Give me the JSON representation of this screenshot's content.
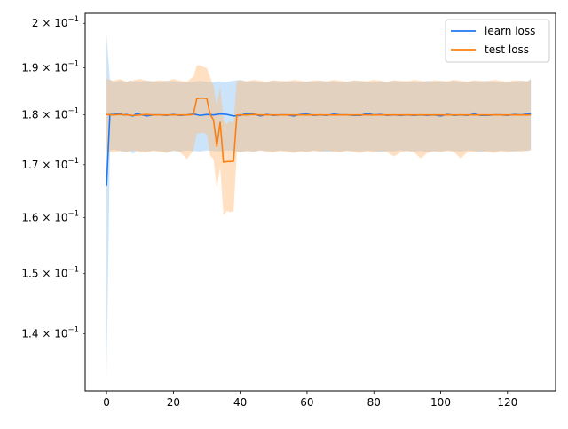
{
  "chart_data": {
    "type": "line",
    "title": "",
    "xlabel": "",
    "ylabel": "",
    "yscale": "log",
    "xlim": [
      -6.4,
      134.4
    ],
    "ylim": [
      0.1311,
      0.2023
    ],
    "x_ticks": [
      0,
      20,
      40,
      60,
      80,
      100,
      120
    ],
    "x_tick_labels": [
      "0",
      "20",
      "40",
      "60",
      "80",
      "100",
      "120"
    ],
    "y_ticks": [
      0.14,
      0.15,
      0.16,
      0.17,
      0.18,
      0.19,
      0.2
    ],
    "y_tick_labels": [
      {
        "base": "1.4 × 10",
        "exp": "−1"
      },
      {
        "base": "1.5 × 10",
        "exp": "−1"
      },
      {
        "base": "1.6 × 10",
        "exp": "−1"
      },
      {
        "base": "1.7 × 10",
        "exp": "−1"
      },
      {
        "base": "1.8 × 10",
        "exp": "−1"
      },
      {
        "base": "1.9 × 10",
        "exp": "−1"
      },
      {
        "base": "2 × 10",
        "exp": "−1"
      }
    ],
    "grid": false,
    "legend_position": "top-right",
    "series": [
      {
        "name": "learn loss",
        "color": "#1f77f4",
        "band_color": "#8cc4f4",
        "band_opacity": 0.45,
        "x": [
          0,
          1,
          2,
          3,
          4,
          5,
          6,
          7,
          8,
          9,
          10,
          12,
          14,
          16,
          18,
          20,
          22,
          24,
          26,
          28,
          30,
          32,
          34,
          36,
          38,
          40,
          42,
          44,
          46,
          48,
          50,
          52,
          54,
          56,
          58,
          60,
          62,
          64,
          66,
          68,
          70,
          72,
          74,
          76,
          78,
          80,
          82,
          84,
          86,
          88,
          90,
          92,
          94,
          96,
          98,
          100,
          102,
          104,
          106,
          108,
          110,
          112,
          114,
          116,
          118,
          120,
          122,
          124,
          126,
          127
        ],
        "values": [
          0.1659,
          0.1801,
          0.1801,
          0.1802,
          0.1803,
          0.18,
          0.1801,
          0.1799,
          0.1798,
          0.1803,
          0.1801,
          0.1798,
          0.18,
          0.18,
          0.1799,
          0.1801,
          0.1799,
          0.18,
          0.1802,
          0.1799,
          0.1801,
          0.18,
          0.1802,
          0.1801,
          0.1798,
          0.1799,
          0.1803,
          0.1802,
          0.1798,
          0.1801,
          0.1799,
          0.18,
          0.18,
          0.1798,
          0.1801,
          0.1802,
          0.1799,
          0.18,
          0.1799,
          0.1802,
          0.18,
          0.18,
          0.1799,
          0.1799,
          0.1803,
          0.18,
          0.1801,
          0.1799,
          0.18,
          0.1799,
          0.18,
          0.1799,
          0.18,
          0.1799,
          0.18,
          0.1798,
          0.1801,
          0.1799,
          0.18,
          0.1799,
          0.1802,
          0.1799,
          0.1799,
          0.18,
          0.18,
          0.1799,
          0.1801,
          0.18,
          0.1802,
          0.1803
        ],
        "upper": [
          0.1975,
          0.1875,
          0.187,
          0.187,
          0.1872,
          0.1871,
          0.1869,
          0.1873,
          0.187,
          0.1871,
          0.187,
          0.1872,
          0.1871,
          0.187,
          0.1872,
          0.1871,
          0.187,
          0.1868,
          0.187,
          0.1872,
          0.187,
          0.1869,
          0.1871,
          0.187,
          0.1872,
          0.1874,
          0.187,
          0.1871,
          0.1869,
          0.187,
          0.1872,
          0.187,
          0.1871,
          0.187,
          0.1869,
          0.1871,
          0.187,
          0.1872,
          0.187,
          0.1871,
          0.1869,
          0.187,
          0.1872,
          0.1871,
          0.187,
          0.1869,
          0.1871,
          0.187,
          0.1872,
          0.187,
          0.1871,
          0.187,
          0.1869,
          0.1872,
          0.187,
          0.1871,
          0.187,
          0.1872,
          0.1869,
          0.187,
          0.1871,
          0.187,
          0.1872,
          0.187,
          0.1869,
          0.1871,
          0.187,
          0.1872,
          0.1871,
          0.1876
        ],
        "lower": [
          0.133,
          0.1727,
          0.173,
          0.1728,
          0.1727,
          0.1726,
          0.1725,
          0.1727,
          0.1722,
          0.1728,
          0.1727,
          0.1726,
          0.1728,
          0.1727,
          0.1725,
          0.1727,
          0.1726,
          0.1728,
          0.1727,
          0.1726,
          0.1728,
          0.1727,
          0.1726,
          0.1728,
          0.1727,
          0.1725,
          0.1727,
          0.1726,
          0.1728,
          0.1727,
          0.1726,
          0.1728,
          0.1727,
          0.1725,
          0.1727,
          0.1726,
          0.1728,
          0.1727,
          0.1725,
          0.1727,
          0.1726,
          0.1728,
          0.1727,
          0.1726,
          0.1728,
          0.1727,
          0.1725,
          0.1727,
          0.1726,
          0.1728,
          0.1727,
          0.1726,
          0.1727,
          0.1725,
          0.1727,
          0.1726,
          0.1728,
          0.1727,
          0.1726,
          0.1728,
          0.1727,
          0.1725,
          0.1727,
          0.1726,
          0.1728,
          0.1727,
          0.1726,
          0.1728,
          0.1727,
          0.1729
        ]
      },
      {
        "name": "test loss",
        "color": "#ff7f0e",
        "band_color": "#ffbb78",
        "band_opacity": 0.45,
        "x": [
          0,
          2,
          4,
          6,
          8,
          10,
          12,
          14,
          16,
          18,
          20,
          22,
          24,
          26,
          27,
          28,
          29,
          30,
          31,
          32,
          33,
          34,
          35,
          36,
          37,
          38,
          39,
          40,
          42,
          44,
          46,
          48,
          50,
          52,
          54,
          56,
          58,
          60,
          62,
          64,
          66,
          68,
          70,
          72,
          74,
          76,
          78,
          80,
          82,
          84,
          86,
          88,
          90,
          92,
          94,
          96,
          98,
          100,
          102,
          104,
          106,
          108,
          110,
          112,
          114,
          116,
          118,
          120,
          122,
          124,
          126,
          127
        ],
        "values": [
          0.1801,
          0.18,
          0.1801,
          0.18,
          0.1799,
          0.18,
          0.1801,
          0.18,
          0.18,
          0.18,
          0.18,
          0.18,
          0.18,
          0.1801,
          0.1834,
          0.1835,
          0.1835,
          0.1834,
          0.1801,
          0.179,
          0.1736,
          0.1785,
          0.1705,
          0.1706,
          0.1706,
          0.1707,
          0.18,
          0.18,
          0.18,
          0.1801,
          0.18,
          0.18,
          0.18,
          0.18,
          0.18,
          0.18,
          0.18,
          0.18,
          0.18,
          0.18,
          0.18,
          0.18,
          0.18,
          0.18,
          0.18,
          0.18,
          0.18,
          0.18,
          0.18,
          0.18,
          0.18,
          0.18,
          0.18,
          0.18,
          0.18,
          0.18,
          0.18,
          0.18,
          0.18,
          0.18,
          0.18,
          0.18,
          0.18,
          0.18,
          0.18,
          0.18,
          0.18,
          0.18,
          0.18,
          0.18,
          0.18,
          0.18
        ],
        "upper": [
          0.1876,
          0.1872,
          0.1876,
          0.187,
          0.1873,
          0.1876,
          0.1872,
          0.1871,
          0.1873,
          0.1871,
          0.1876,
          0.1872,
          0.187,
          0.1881,
          0.1905,
          0.1906,
          0.1902,
          0.19,
          0.188,
          0.1862,
          0.182,
          0.186,
          0.179,
          0.1781,
          0.1788,
          0.1785,
          0.1872,
          0.1873,
          0.1871,
          0.1874,
          0.1872,
          0.187,
          0.1873,
          0.1872,
          0.1871,
          0.1874,
          0.1872,
          0.187,
          0.1873,
          0.1872,
          0.1871,
          0.1874,
          0.1872,
          0.187,
          0.1873,
          0.1872,
          0.1871,
          0.1874,
          0.1872,
          0.187,
          0.1873,
          0.1872,
          0.1871,
          0.1874,
          0.1872,
          0.187,
          0.1873,
          0.1872,
          0.1871,
          0.1874,
          0.1872,
          0.187,
          0.1873,
          0.1872,
          0.1871,
          0.1874,
          0.1872,
          0.187,
          0.1873,
          0.1872,
          0.1871,
          0.1875
        ],
        "lower": [
          0.1726,
          0.1724,
          0.1727,
          0.1725,
          0.1728,
          0.1725,
          0.1724,
          0.1727,
          0.1725,
          0.1723,
          0.1728,
          0.1725,
          0.1711,
          0.1728,
          0.1762,
          0.1762,
          0.1764,
          0.176,
          0.1718,
          0.1711,
          0.1654,
          0.1695,
          0.1604,
          0.1612,
          0.161,
          0.1611,
          0.1726,
          0.1724,
          0.1727,
          0.1725,
          0.1728,
          0.1725,
          0.1724,
          0.1727,
          0.1725,
          0.1723,
          0.1726,
          0.1724,
          0.1727,
          0.1725,
          0.1728,
          0.1725,
          0.1724,
          0.1727,
          0.1725,
          0.1723,
          0.1726,
          0.1724,
          0.1727,
          0.1725,
          0.1716,
          0.1724,
          0.1727,
          0.1725,
          0.1712,
          0.1723,
          0.1726,
          0.1724,
          0.1727,
          0.1725,
          0.1712,
          0.1725,
          0.1724,
          0.1727,
          0.1725,
          0.1723,
          0.1726,
          0.1724,
          0.1727,
          0.1725,
          0.1728,
          0.1729
        ]
      }
    ]
  }
}
